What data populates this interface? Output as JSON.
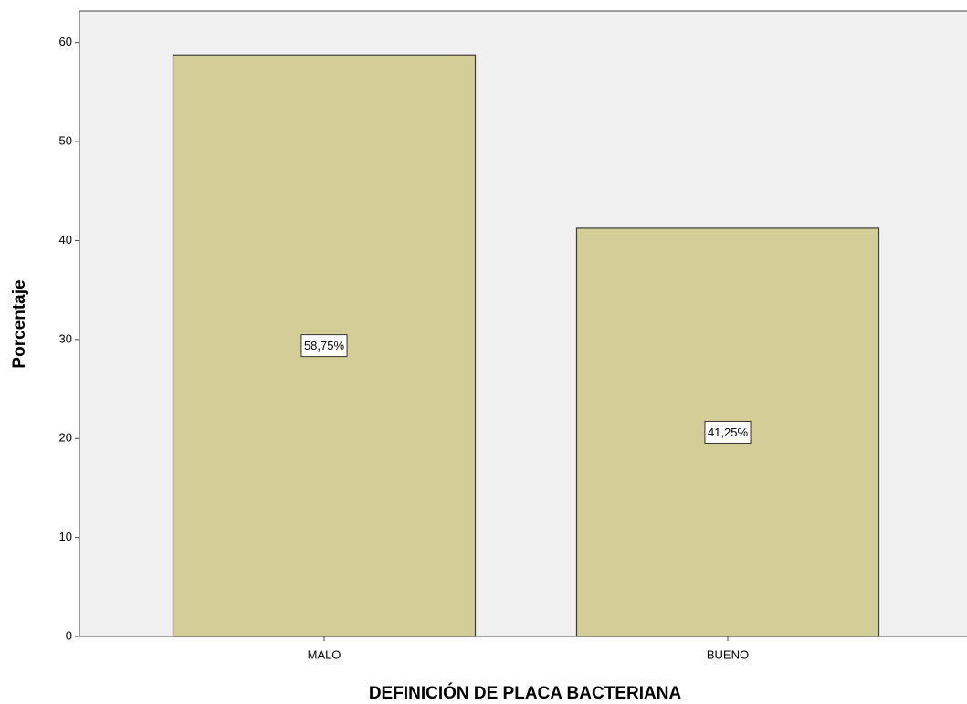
{
  "chart_data": {
    "type": "bar",
    "x_label": "DEFINICIÓN DE PLACA BACTERIANA",
    "y_label": "Porcentaje",
    "categories": [
      "MALO",
      "BUENO"
    ],
    "values": [
      58.75,
      41.25
    ],
    "value_labels": [
      "58,75%",
      "41,25%"
    ],
    "color": "#d3ce97",
    "ylim": [
      0,
      63.2
    ],
    "yticks": [
      0,
      10,
      20,
      30,
      40,
      50,
      60
    ],
    "grid": false
  }
}
